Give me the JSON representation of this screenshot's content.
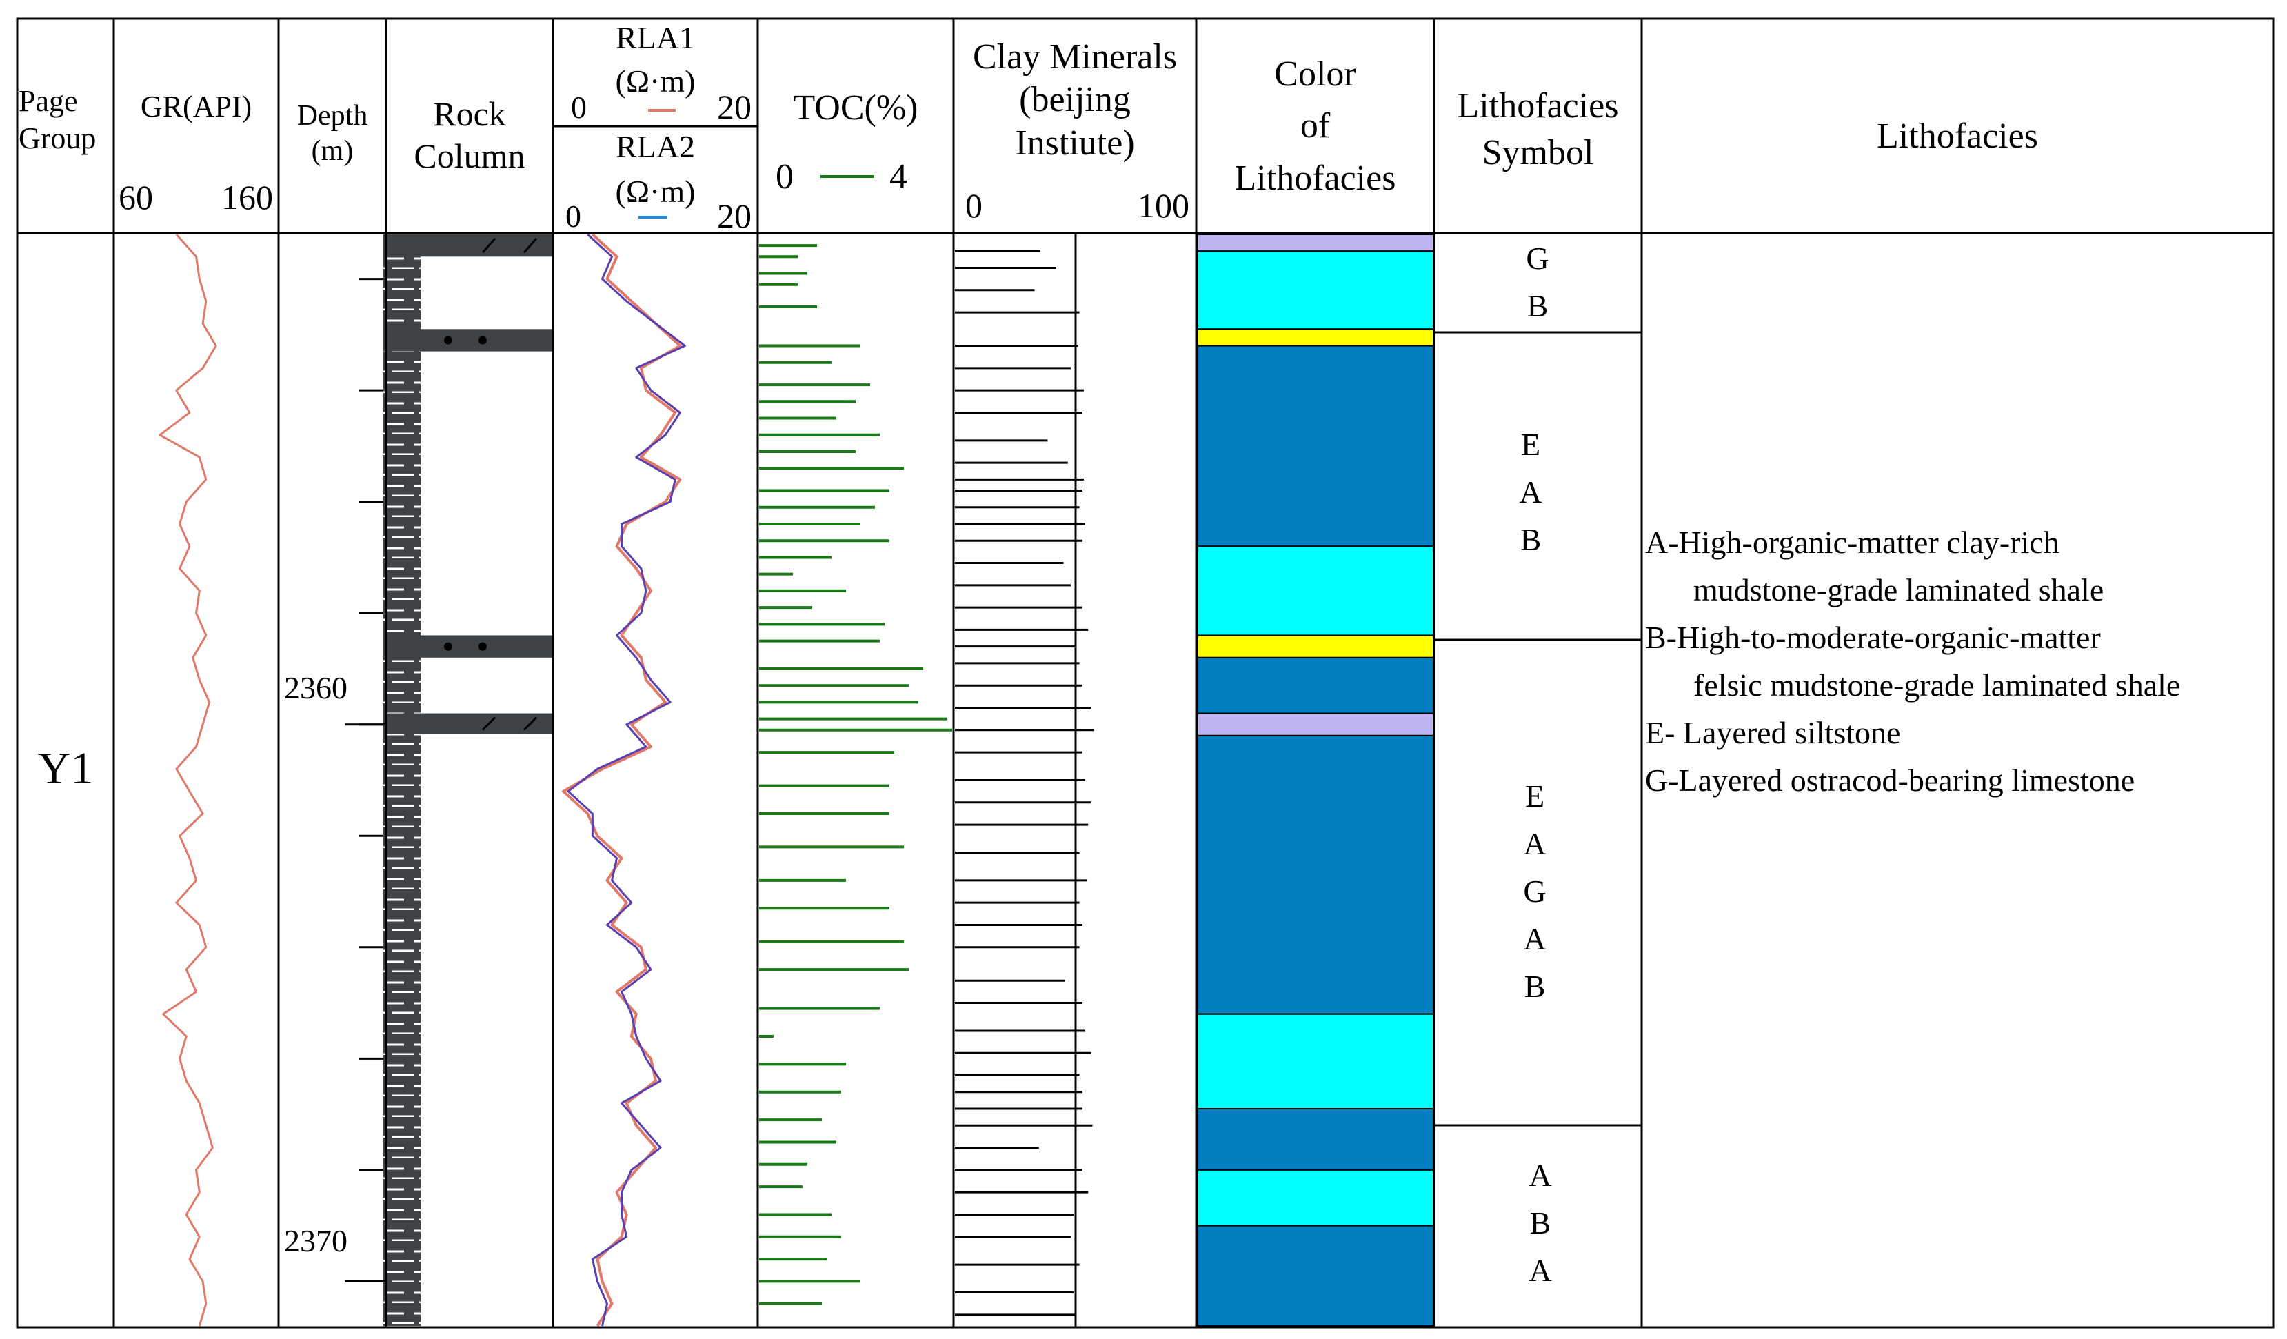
{
  "headers": {
    "group": [
      "Page",
      "Group"
    ],
    "gr": {
      "title": "GR(API)",
      "min": "60",
      "max": "160"
    },
    "depth": [
      "Depth",
      "(m)"
    ],
    "rock": [
      "Rock",
      "Column"
    ],
    "rla1": {
      "name": "RLA1",
      "unit": "(Ω·m)",
      "min": "0",
      "max": "20"
    },
    "rla2": {
      "name": "RLA2",
      "unit": "(Ω·m)",
      "min": "0",
      "max": "20"
    },
    "toc": {
      "title": "TOC(%)",
      "min": "0",
      "max": "4"
    },
    "clay": [
      "Clay Minerals",
      "(beijing",
      "Instiute)"
    ],
    "clay_scale": {
      "min": "0",
      "max": "100"
    },
    "color": [
      "Color",
      "of",
      "Lithofacies"
    ],
    "symbol": [
      "Lithofacies",
      "Symbol"
    ],
    "lithofacies": "Lithofacies"
  },
  "well": "Y1",
  "depth_labels": [
    "2360",
    "2370"
  ],
  "colors": {
    "gr": "#e07a6a",
    "rla1": "#e0796a",
    "rla2": "#5a3fb0",
    "toc": "#1a7a1a",
    "A": "#0080c0",
    "B": "#00ffff",
    "E": "#ffff00",
    "G": "#bdb4f0",
    "rock": "#3f4346"
  },
  "symbol_groups": [
    {
      "letters": [
        "G",
        "B"
      ]
    },
    {
      "letters": [
        "E",
        "A",
        "B"
      ]
    },
    {
      "letters": [
        "E",
        "A",
        "G",
        "A",
        "B"
      ]
    },
    {
      "letters": [
        "A",
        "B",
        "A"
      ]
    }
  ],
  "legend": {
    "A1": "A-High-organic-matter clay-rich",
    "A2": "mudstone-grade laminated shale",
    "B1": "B-High-to-moderate-organic-matter",
    "B2": "felsic mudstone-grade laminated shale",
    "E": "E- Layered siltstone",
    "G": "G-Layered ostracod-bearing limestone"
  },
  "chart_data": {
    "type": "well-log",
    "depth_unit": "m",
    "depth_range": [
      2351.2,
      2370.8
    ],
    "lithofacies_column": [
      {
        "code": "G",
        "top": 2351.2,
        "base": 2351.5
      },
      {
        "code": "B",
        "top": 2351.5,
        "base": 2352.9
      },
      {
        "code": "E",
        "top": 2352.9,
        "base": 2353.2
      },
      {
        "code": "A",
        "top": 2353.2,
        "base": 2356.8
      },
      {
        "code": "B",
        "top": 2356.8,
        "base": 2358.4
      },
      {
        "code": "E",
        "top": 2358.4,
        "base": 2358.8
      },
      {
        "code": "A",
        "top": 2358.8,
        "base": 2359.8
      },
      {
        "code": "G",
        "top": 2359.8,
        "base": 2360.2
      },
      {
        "code": "A",
        "top": 2360.2,
        "base": 2365.2
      },
      {
        "code": "B",
        "top": 2365.2,
        "base": 2366.9
      },
      {
        "code": "A",
        "top": 2366.9,
        "base": 2368.0
      },
      {
        "code": "B",
        "top": 2368.0,
        "base": 2369.0
      },
      {
        "code": "A",
        "top": 2369.0,
        "base": 2370.8
      }
    ],
    "rock_column_beds": [
      {
        "type": "limestone",
        "top": 2351.2,
        "base": 2351.6
      },
      {
        "type": "siltstone",
        "top": 2352.9,
        "base": 2353.3
      },
      {
        "type": "siltstone",
        "top": 2358.4,
        "base": 2358.8
      },
      {
        "type": "limestone",
        "top": 2359.8,
        "base": 2360.1
      }
    ],
    "gr_api": {
      "range": [
        60,
        160
      ],
      "depth": [
        2351.2,
        2351.6,
        2352.0,
        2352.4,
        2352.8,
        2353.2,
        2353.6,
        2354.0,
        2354.4,
        2354.8,
        2355.2,
        2355.6,
        2356.0,
        2356.4,
        2356.8,
        2357.2,
        2357.6,
        2358.0,
        2358.4,
        2358.8,
        2359.2,
        2359.6,
        2360.0,
        2360.4,
        2360.8,
        2361.2,
        2361.6,
        2362.0,
        2362.4,
        2362.8,
        2363.2,
        2363.6,
        2364.0,
        2364.4,
        2364.8,
        2365.2,
        2365.6,
        2366.0,
        2366.4,
        2366.8,
        2367.2,
        2367.6,
        2368.0,
        2368.4,
        2368.8,
        2369.2,
        2369.6,
        2370.0,
        2370.4,
        2370.8
      ],
      "value": [
        98,
        110,
        112,
        116,
        114,
        122,
        114,
        98,
        106,
        88,
        112,
        116,
        104,
        100,
        106,
        100,
        112,
        110,
        116,
        108,
        112,
        118,
        114,
        110,
        98,
        106,
        114,
        100,
        106,
        110,
        98,
        112,
        116,
        104,
        110,
        90,
        104,
        100,
        104,
        112,
        116,
        120,
        110,
        112,
        104,
        112,
        106,
        114,
        116,
        112
      ]
    },
    "rla1_ohmm": {
      "range": [
        0,
        20
      ],
      "depth": [
        2351.2,
        2351.6,
        2352.0,
        2352.4,
        2352.8,
        2353.2,
        2353.6,
        2354.0,
        2354.4,
        2354.8,
        2355.2,
        2355.6,
        2356.0,
        2356.4,
        2356.8,
        2357.2,
        2357.6,
        2358.0,
        2358.4,
        2358.8,
        2359.2,
        2359.6,
        2360.0,
        2360.4,
        2360.8,
        2361.2,
        2361.6,
        2362.0,
        2362.4,
        2362.8,
        2363.2,
        2363.6,
        2364.0,
        2364.4,
        2364.8,
        2365.2,
        2365.6,
        2366.0,
        2366.4,
        2366.8,
        2367.2,
        2367.6,
        2368.0,
        2368.4,
        2368.8,
        2369.2,
        2369.6,
        2370.0,
        2370.4,
        2370.8
      ],
      "value": [
        3.5,
        6.0,
        5.0,
        7.5,
        10.0,
        12.5,
        8.5,
        9.0,
        12.0,
        10.5,
        8.5,
        12.5,
        11.0,
        7.0,
        6.0,
        8.0,
        9.5,
        8.0,
        6.5,
        8.5,
        9.0,
        11.0,
        7.5,
        9.5,
        4.5,
        0.5,
        3.0,
        4.0,
        6.5,
        5.0,
        7.0,
        5.5,
        8.5,
        9.0,
        6.0,
        8.0,
        7.5,
        9.5,
        10.0,
        7.0,
        8.0,
        10.0,
        8.0,
        6.0,
        7.0,
        6.5,
        4.0,
        4.5,
        5.5,
        4.0
      ]
    },
    "rla2_ohmm": {
      "range": [
        0,
        20
      ],
      "depth": [
        2351.2,
        2351.6,
        2352.0,
        2352.4,
        2352.8,
        2353.2,
        2353.6,
        2354.0,
        2354.4,
        2354.8,
        2355.2,
        2355.6,
        2356.0,
        2356.4,
        2356.8,
        2357.2,
        2357.6,
        2358.0,
        2358.4,
        2358.8,
        2359.2,
        2359.6,
        2360.0,
        2360.4,
        2360.8,
        2361.2,
        2361.6,
        2362.0,
        2362.4,
        2362.8,
        2363.2,
        2363.6,
        2364.0,
        2364.4,
        2364.8,
        2365.2,
        2365.6,
        2366.0,
        2366.4,
        2366.8,
        2367.2,
        2367.6,
        2368.0,
        2368.4,
        2368.8,
        2369.2,
        2369.6,
        2370.0,
        2370.4,
        2370.8
      ],
      "value": [
        3.0,
        5.5,
        4.5,
        7.0,
        10.0,
        13.0,
        8.0,
        9.5,
        12.5,
        11.0,
        8.0,
        12.0,
        11.5,
        6.5,
        6.5,
        8.5,
        9.0,
        8.5,
        6.0,
        8.0,
        9.5,
        11.5,
        7.0,
        9.0,
        4.0,
        1.0,
        3.5,
        3.5,
        6.0,
        5.5,
        7.5,
        5.0,
        8.0,
        9.5,
        6.5,
        7.5,
        8.0,
        9.0,
        10.5,
        6.5,
        8.5,
        10.5,
        7.5,
        6.5,
        6.5,
        7.0,
        3.5,
        4.0,
        5.0,
        4.5
      ]
    },
    "toc_percent": {
      "range": [
        0,
        4
      ],
      "depth": [
        2351.4,
        2351.6,
        2351.9,
        2352.1,
        2352.5,
        2353.2,
        2353.5,
        2353.9,
        2354.2,
        2354.5,
        2354.8,
        2355.1,
        2355.4,
        2355.8,
        2356.1,
        2356.4,
        2356.7,
        2357.0,
        2357.3,
        2357.6,
        2357.9,
        2358.2,
        2358.5,
        2359.0,
        2359.3,
        2359.6,
        2359.9,
        2360.1,
        2360.5,
        2361.1,
        2361.6,
        2362.2,
        2362.8,
        2363.3,
        2363.9,
        2364.4,
        2365.1,
        2365.6,
        2366.1,
        2366.6,
        2367.1,
        2367.5,
        2367.9,
        2368.3,
        2368.8,
        2369.2,
        2369.6,
        2370.0,
        2370.4
      ],
      "value": [
        1.2,
        0.8,
        1.0,
        0.8,
        1.2,
        2.1,
        1.5,
        2.3,
        2.0,
        1.6,
        2.5,
        2.0,
        3.0,
        2.7,
        2.4,
        2.1,
        2.7,
        1.5,
        0.7,
        1.8,
        1.1,
        2.6,
        2.5,
        3.4,
        3.1,
        3.3,
        3.9,
        4.0,
        2.8,
        2.7,
        2.7,
        3.0,
        1.8,
        2.7,
        3.0,
        3.1,
        2.5,
        0.3,
        1.8,
        1.7,
        1.3,
        1.6,
        1.0,
        0.9,
        1.5,
        1.7,
        1.4,
        2.1,
        1.3
      ]
    },
    "clay_minerals_percent": {
      "range": [
        0,
        100
      ],
      "depth": [
        2351.5,
        2351.8,
        2352.2,
        2352.6,
        2353.2,
        2353.6,
        2354.0,
        2354.4,
        2354.9,
        2355.3,
        2355.6,
        2355.8,
        2356.1,
        2356.4,
        2356.7,
        2357.1,
        2357.5,
        2357.9,
        2358.3,
        2358.6,
        2358.9,
        2359.3,
        2359.7,
        2360.1,
        2360.5,
        2361.0,
        2361.4,
        2361.8,
        2362.3,
        2362.8,
        2363.2,
        2363.6,
        2364.0,
        2364.6,
        2365.0,
        2365.5,
        2365.9,
        2366.3,
        2366.6,
        2366.9,
        2367.2,
        2367.6,
        2368.0,
        2368.4,
        2368.8,
        2369.2,
        2369.7,
        2370.2,
        2370.6
      ],
      "value": [
        59,
        70,
        55,
        86,
        85,
        80,
        89,
        88,
        64,
        78,
        89,
        88,
        86,
        90,
        88,
        75,
        80,
        88,
        92,
        83,
        86,
        88,
        94,
        96,
        88,
        90,
        94,
        92,
        86,
        91,
        86,
        88,
        86,
        76,
        88,
        90,
        94,
        86,
        88,
        88,
        95,
        58,
        88,
        92,
        82,
        80,
        86,
        82,
        84
      ]
    }
  }
}
